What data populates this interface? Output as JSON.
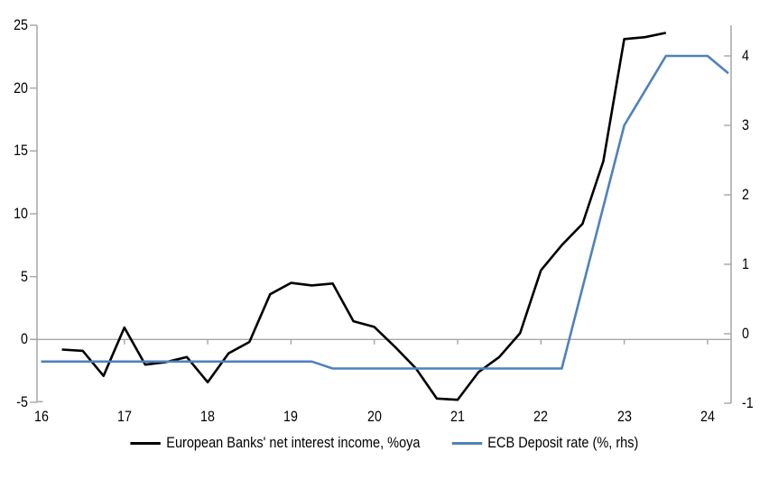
{
  "chart_data": {
    "type": "line",
    "title": "",
    "x_axis": {
      "tick_labels": [
        "16",
        "17",
        "18",
        "19",
        "20",
        "21",
        "22",
        "23",
        "24"
      ],
      "tick_values": [
        16,
        17,
        18,
        19,
        20,
        21,
        22,
        23,
        24
      ],
      "range": [
        15.95,
        24.28
      ]
    },
    "y_axis_left": {
      "tick_labels": [
        "25",
        "20",
        "15",
        "10",
        "5",
        "0",
        "-5"
      ],
      "tick_values": [
        25,
        20,
        15,
        10,
        5,
        0,
        -5
      ],
      "range": [
        -5,
        25
      ]
    },
    "y_axis_right": {
      "tick_labels": [
        "4",
        "3",
        "2",
        "1",
        "0",
        "-1"
      ],
      "tick_values": [
        4,
        3,
        2,
        1,
        0,
        -1
      ],
      "range": [
        -1,
        4.44
      ]
    },
    "grid": "zero_line_only",
    "legend_position": "bottom_center",
    "series": [
      {
        "name": "European Banks' net interest income, %oya",
        "axis": "left",
        "color": "#000000",
        "points": [
          [
            16.25,
            -0.8
          ],
          [
            16.5,
            -0.9
          ],
          [
            16.75,
            -2.9
          ],
          [
            17.0,
            0.95
          ],
          [
            17.25,
            -2.0
          ],
          [
            17.5,
            -1.8
          ],
          [
            17.75,
            -1.4
          ],
          [
            18.0,
            -3.4
          ],
          [
            18.25,
            -1.1
          ],
          [
            18.5,
            -0.2
          ],
          [
            18.75,
            3.6
          ],
          [
            19.0,
            4.5
          ],
          [
            19.25,
            4.3
          ],
          [
            19.5,
            4.45
          ],
          [
            19.75,
            1.45
          ],
          [
            20.0,
            1.0
          ],
          [
            20.25,
            -0.6
          ],
          [
            20.5,
            -2.3
          ],
          [
            20.75,
            -4.7
          ],
          [
            21.0,
            -4.8
          ],
          [
            21.25,
            -2.6
          ],
          [
            21.5,
            -1.4
          ],
          [
            21.75,
            0.5
          ],
          [
            22.0,
            5.5
          ],
          [
            22.25,
            7.5
          ],
          [
            22.5,
            9.2
          ],
          [
            22.75,
            14.2
          ],
          [
            23.0,
            23.9
          ],
          [
            23.25,
            24.05
          ],
          [
            23.5,
            24.4
          ]
        ]
      },
      {
        "name": "ECB Deposit rate (%, rhs)",
        "axis": "right",
        "color": "#4E81BD",
        "points": [
          [
            16.0,
            -0.4
          ],
          [
            19.25,
            -0.4
          ],
          [
            19.5,
            -0.5
          ],
          [
            22.25,
            -0.5
          ],
          [
            23.0,
            3.0
          ],
          [
            23.5,
            4.0
          ],
          [
            24.0,
            4.0
          ],
          [
            24.25,
            3.75
          ]
        ]
      }
    ]
  },
  "colors": {
    "axis": "#a6a6a6",
    "zero_line": "#a6a6a6",
    "text": "#000000",
    "background": "#ffffff",
    "series_black": "#000000",
    "series_blue": "#4E81BD"
  }
}
